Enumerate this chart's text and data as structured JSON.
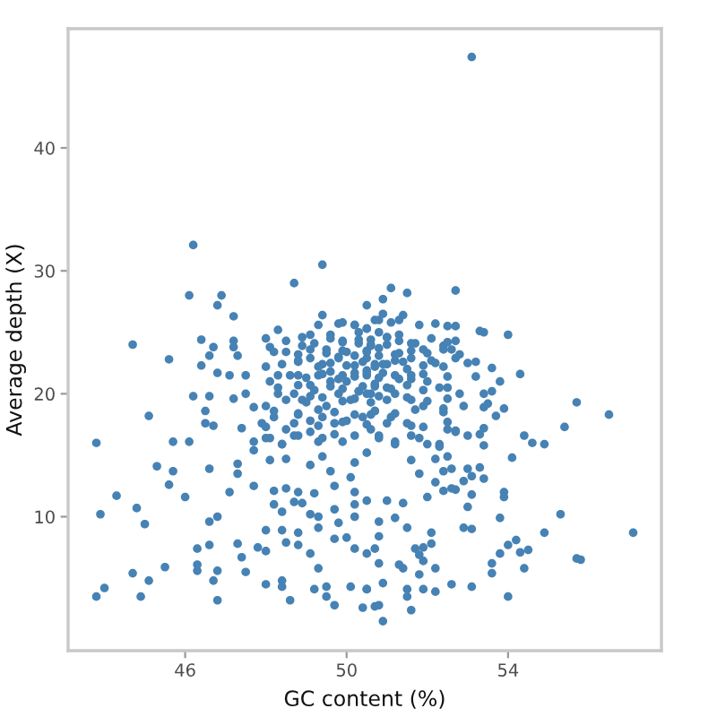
{
  "chart_data": {
    "type": "scatter",
    "xlabel": "GC content (%)",
    "ylabel": "Average depth (X)",
    "series": [
      {
        "color": "#4682b4",
        "x": [
          53.1,
          46.2,
          49.4,
          48.7,
          46.1,
          46.9,
          46.8,
          50.5,
          47.2,
          44.7,
          46.4,
          48.3,
          49.4,
          49.8,
          47.2,
          47.2,
          45.6,
          46.7,
          46.6,
          47.3,
          46.4,
          46.8,
          47.1,
          47.5,
          48.0,
          48.1,
          48.5,
          48.0,
          48.3,
          46.2,
          46.6,
          47.2,
          47.5,
          47.7,
          45.1,
          46.5,
          46.5,
          46.7,
          47.4,
          47.9,
          43.8,
          45.7,
          46.1,
          48.8,
          48.9,
          49.1,
          49.3,
          49.6,
          49.9,
          50.2,
          50.5,
          50.7,
          49.1,
          49.4,
          49.8,
          50.0,
          50.3,
          50.6,
          48.8,
          49.1,
          49.3,
          49.6,
          49.9,
          50.2,
          50.5,
          50.7,
          48.7,
          48.9,
          49.1,
          49.5,
          49.8,
          50.1,
          50.3,
          50.6,
          48.8,
          49.1,
          49.4,
          49.7,
          50.0,
          50.4,
          50.7,
          48.8,
          49.1,
          49.4,
          49.9,
          50.2,
          50.6,
          48.1,
          48.3,
          48.0,
          48.2,
          48.0,
          47.7,
          48.1,
          48.5,
          48.4,
          50.5,
          50.8,
          51.1,
          50.6,
          51.0,
          51.3,
          51.7,
          51.9,
          50.5,
          50.8,
          51.2,
          51.6,
          52.1,
          52.4,
          50.5,
          50.9,
          51.3,
          51.6,
          52.0,
          52.5,
          52.8,
          50.5,
          50.8,
          51.2,
          51.6,
          51.9,
          52.4,
          52.9,
          50.6,
          51.1,
          51.5,
          51.9,
          52.5,
          50.8,
          51.2,
          51.8,
          52.3,
          52.7,
          52.7,
          51.1,
          51.5,
          50.9,
          50.9,
          51.4,
          52.2,
          52.5,
          52.7,
          51.8,
          53.4,
          54.0,
          52.7,
          52.4,
          52.6,
          53.2,
          53.0,
          52.7,
          53.6,
          54.3,
          53.2,
          53.8,
          53.6,
          53.4,
          53.9,
          53.5,
          55.7,
          56.5,
          55.4,
          54.4,
          54.6,
          54.9,
          53.4,
          53.3,
          53.7,
          53.4,
          45.3,
          45.7,
          45.6,
          46.6,
          46.0,
          44.3,
          43.9,
          44.8,
          45.0,
          47.3,
          47.3,
          47.1,
          46.6,
          46.8,
          46.3,
          46.6,
          46.3,
          46.3,
          46.8,
          46.7,
          46.8,
          45.5,
          44.7,
          45.1,
          44.0,
          43.8,
          44.9,
          47.5,
          47.4,
          47.3,
          47.8,
          48.0,
          48.0,
          48.4,
          48.4,
          48.0,
          48.6,
          48.5,
          48.8,
          49.1,
          49.3,
          49.2,
          49.5,
          49.5,
          49.7,
          50.1,
          50.4,
          50.5,
          50.7,
          47.7,
          48.2,
          48.5,
          48.8,
          49.2,
          48.9,
          48.7,
          48.4,
          48.2,
          49.1,
          49.3,
          49.3,
          49.7,
          49.8,
          50.2,
          50.2,
          50.5,
          50.2,
          48.4,
          48.8,
          49.7,
          50.0,
          50.2,
          50.5,
          47.7,
          48.0,
          48.4,
          48.7,
          49.3,
          49.7,
          48.1,
          48.5,
          49.1,
          49.4,
          50.2,
          50.5,
          50.1,
          49.7,
          49.6,
          54.1,
          53.4,
          53.9,
          53.9,
          53.8,
          55.3,
          54.9,
          57.1,
          55.7,
          55.8,
          54.2,
          54.5,
          54.3,
          54.0,
          53.8,
          54.4,
          53.6,
          53.6,
          54.0,
          53.1,
          52.6,
          52.9,
          53.1,
          53.0,
          53.1,
          52.7,
          52.6,
          52.4,
          52.2,
          52.6,
          53.0,
          53.1,
          53.4,
          52.9,
          52.2,
          52.4,
          51.8,
          51.6,
          52.1,
          52.1,
          51.9,
          51.7,
          51.8,
          51.9,
          52.2,
          50.8,
          50.9,
          51.6,
          51.4,
          51.5,
          51.8,
          51.9,
          51.5,
          52.2,
          50.8,
          50.9,
          50.5,
          51.3,
          50.8,
          50.8,
          50.7,
          51.2,
          51.5,
          51.0,
          51.4,
          52.0,
          52.5,
          52.0,
          51.6,
          52.7,
          52.3,
          51.2,
          50.8,
          53.0,
          53.3,
          49.8,
          50.2,
          50.5,
          50.9,
          51.3,
          49.6,
          50.0,
          50.7,
          51.0,
          49.9,
          50.3,
          50.8,
          49.5,
          50.4,
          51.5,
          51.0,
          48.5,
          48.9,
          49.2,
          49.6,
          49.9,
          50.3,
          50.6,
          51.0,
          51.3,
          51.6,
          52.1,
          52.5,
          48.2,
          48.8,
          49.1,
          49.5,
          49.9,
          50.2,
          50.5,
          50.8,
          51.2,
          51.6,
          52.0,
          52.4,
          52.8,
          48.4,
          48.8,
          49.3,
          49.6,
          50.0,
          50.4,
          50.7,
          51.0,
          51.4,
          51.9,
          52.2,
          48.6,
          49.0,
          49.4,
          49.8,
          50.2,
          50.5,
          50.8,
          51.2,
          51.6,
          51.9,
          52.5,
          48.3,
          48.8,
          49.2,
          49.6,
          49.9,
          50.3,
          50.7,
          51.1,
          51.5,
          51.9,
          52.3,
          48.5,
          49.0,
          49.4,
          49.9,
          50.2,
          50.6,
          51.0,
          51.5,
          52.0,
          52.5,
          48.2,
          48.8,
          49.3,
          49.7,
          50.2,
          50.7,
          51.2,
          51.7,
          52.4,
          48.7,
          49.3,
          49.9,
          50.5,
          51.0,
          51.6,
          52.5,
          51.3,
          53.3,
          50.2
        ],
        "values": [
          47.4,
          32.1,
          30.5,
          29.0,
          28.0,
          28.0,
          27.2,
          27.2,
          26.3,
          24.0,
          24.4,
          25.2,
          26.4,
          25.7,
          24.3,
          23.8,
          22.8,
          23.8,
          23.1,
          23.1,
          22.3,
          21.7,
          21.5,
          21.5,
          24.5,
          23.8,
          23.4,
          22.2,
          21.5,
          19.8,
          19.8,
          19.6,
          20.0,
          18.9,
          18.2,
          18.6,
          17.6,
          17.4,
          17.2,
          17.6,
          16.0,
          16.1,
          16.1,
          22.7,
          23.9,
          24.8,
          25.6,
          24.8,
          25.8,
          25.6,
          25.3,
          26.0,
          22.9,
          22.4,
          22.9,
          23.4,
          24.1,
          23.9,
          21.5,
          20.7,
          21.5,
          21.0,
          21.5,
          21.7,
          21.9,
          22.4,
          20.0,
          19.5,
          19.8,
          19.0,
          20.0,
          19.5,
          20.2,
          20.0,
          18.3,
          17.8,
          18.1,
          17.6,
          17.8,
          18.1,
          18.6,
          16.6,
          16.9,
          16.4,
          16.1,
          16.6,
          17.1,
          21.0,
          20.0,
          19.0,
          18.1,
          17.3,
          16.1,
          16.4,
          17.1,
          15.9,
          25.3,
          26.0,
          25.8,
          24.4,
          24.6,
          24.8,
          24.1,
          23.6,
          22.9,
          23.1,
          22.7,
          22.9,
          22.7,
          22.2,
          21.5,
          21.7,
          21.2,
          21.5,
          21.0,
          20.5,
          20.0,
          20.0,
          19.8,
          20.0,
          19.5,
          19.0,
          18.8,
          19.0,
          18.3,
          18.1,
          17.6,
          17.3,
          17.1,
          16.6,
          16.1,
          16.4,
          15.9,
          16.9,
          28.4,
          28.6,
          28.2,
          27.7,
          26.5,
          26.4,
          25.7,
          25.5,
          25.5,
          25.6,
          25.0,
          24.8,
          24.3,
          23.9,
          23.6,
          22.6,
          22.5,
          22.9,
          22.1,
          21.6,
          21.4,
          21.0,
          20.2,
          20.0,
          18.8,
          19.2,
          19.3,
          18.3,
          17.3,
          16.6,
          16.0,
          15.9,
          17.2,
          16.7,
          18.2,
          18.9,
          14.1,
          13.7,
          12.6,
          13.9,
          11.6,
          11.7,
          10.2,
          10.7,
          9.4,
          14.3,
          13.5,
          12.0,
          9.6,
          10.0,
          7.4,
          7.7,
          6.1,
          5.6,
          5.6,
          4.8,
          3.2,
          5.9,
          5.4,
          4.8,
          4.2,
          3.5,
          3.5,
          5.5,
          6.7,
          7.8,
          7.5,
          7.2,
          8.9,
          4.8,
          4.3,
          4.5,
          3.2,
          7.9,
          7.7,
          7.0,
          5.8,
          4.1,
          4.3,
          3.5,
          2.8,
          4.3,
          2.6,
          4.1,
          2.7,
          12.5,
          12.1,
          12.3,
          12.0,
          11.9,
          11.1,
          11.2,
          10.4,
          11.0,
          10.2,
          10.0,
          9.1,
          10.6,
          9.5,
          11.0,
          10.0,
          11.3,
          12.0,
          8.9,
          8.7,
          8.2,
          8.3,
          7.4,
          7.0,
          15.4,
          16.4,
          15.9,
          16.6,
          16.1,
          16.7,
          14.6,
          14.7,
          14.2,
          14.9,
          14.4,
          15.2,
          13.2,
          12.5,
          13.7,
          14.8,
          15.8,
          12.0,
          11.6,
          9.9,
          10.2,
          8.7,
          8.7,
          6.6,
          6.5,
          8.1,
          7.3,
          7.1,
          7.7,
          7.0,
          5.8,
          6.2,
          5.4,
          3.5,
          4.3,
          4.5,
          9.1,
          9.0,
          10.8,
          11.8,
          12.2,
          12.3,
          12.1,
          12.8,
          13.9,
          13.9,
          13.3,
          13.1,
          12.9,
          14.7,
          13.7,
          13.5,
          14.6,
          8.7,
          7.8,
          7.5,
          7.4,
          6.9,
          6.4,
          5.8,
          2.8,
          1.5,
          2.4,
          5.8,
          4.1,
          5.3,
          4.1,
          3.5,
          3.9,
          6.2,
          4.6,
          4.1,
          6.1,
          9.6,
          8.4,
          7.4,
          9.9,
          9.1,
          11.3,
          11.1,
          11.6,
          14.9,
          15.9,
          16.6,
          17.0,
          15.7,
          15.9,
          16.4,
          16.6,
          14.0,
          23.0,
          22.3,
          23.5,
          22.4,
          23.3,
          21.8,
          21.0,
          20.8,
          24.0,
          24.3,
          25.0,
          25.0,
          23.6,
          20.6,
          22.0,
          20.5,
          24.3,
          24.6,
          24.1,
          24.5,
          24.2,
          24.4,
          24.0,
          24.6,
          24.3,
          24.1,
          24.5,
          24.2,
          23.4,
          23.2,
          23.6,
          23.3,
          23.5,
          23.1,
          23.4,
          23.7,
          23.2,
          23.5,
          23.3,
          23.6,
          23.2,
          22.4,
          22.6,
          22.2,
          22.5,
          22.3,
          22.6,
          22.2,
          22.4,
          22.6,
          22.3,
          22.5,
          21.5,
          21.3,
          21.6,
          21.2,
          21.4,
          21.7,
          21.3,
          21.5,
          21.2,
          21.6,
          21.4,
          20.5,
          20.7,
          20.3,
          20.6,
          20.4,
          20.2,
          20.6,
          20.4,
          20.7,
          20.3,
          20.5,
          19.5,
          19.3,
          19.7,
          19.4,
          19.6,
          19.3,
          19.5,
          19.7,
          19.4,
          19.6,
          18.6,
          18.4,
          18.7,
          18.5,
          18.3,
          18.6,
          18.4,
          18.7,
          18.5,
          17.6,
          17.4,
          17.7,
          17.5,
          17.6,
          17.4,
          17.7,
          26.0,
          25.1,
          25.6
        ]
      }
    ],
    "xlim": [
      43.1,
      57.8
    ],
    "ylim": [
      -0.9,
      49.7
    ],
    "xticks": [
      46,
      50,
      54
    ],
    "yticks": [
      10,
      20,
      30,
      40
    ],
    "grid": false,
    "marker": "circle"
  }
}
